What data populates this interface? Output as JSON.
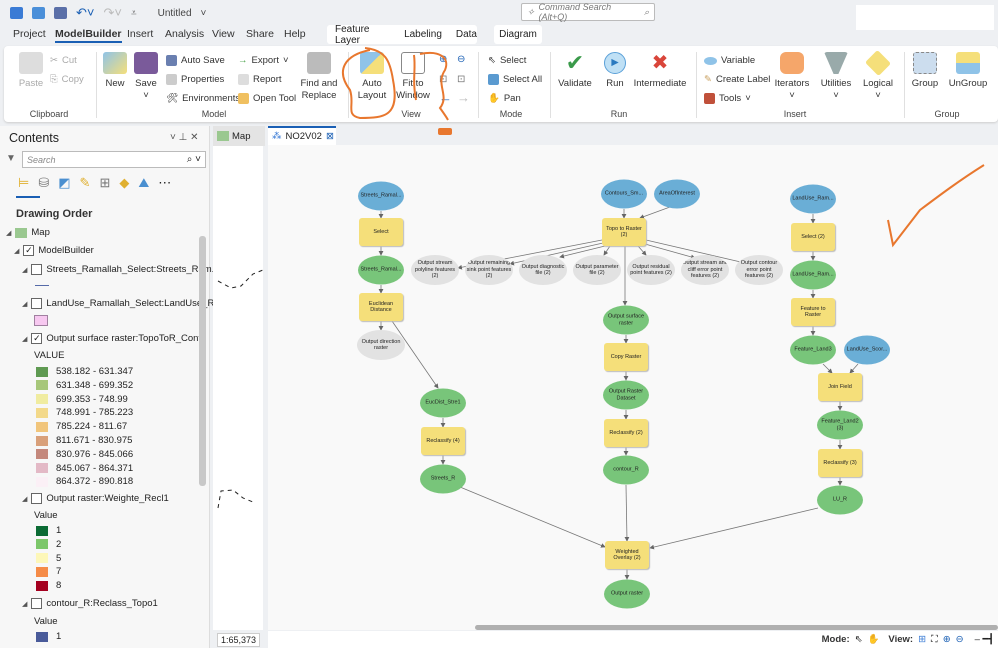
{
  "title": "Untitled",
  "search": {
    "placeholder": "Command Search (Alt+Q)"
  },
  "tabs": [
    "Project",
    "ModelBuilder",
    "Insert",
    "Analysis",
    "View",
    "Share",
    "Help"
  ],
  "context_tabs": [
    "Feature Layer",
    "Labeling",
    "Data"
  ],
  "diagram_tab": "Diagram",
  "ribbon": {
    "clipboard": {
      "label": "Clipboard",
      "paste": "Paste",
      "cut": "Cut",
      "copy": "Copy"
    },
    "model": {
      "label": "Model",
      "new": "New",
      "save": "Save",
      "auto_save": "Auto Save",
      "properties": "Properties",
      "environments": "Environments",
      "export": "Export",
      "report": "Report",
      "open_tool": "Open Tool",
      "find_replace": "Find and Replace"
    },
    "view": {
      "label": "View",
      "auto_layout": "Auto Layout",
      "fit": "Fit to Window"
    },
    "mode": {
      "label": "Mode",
      "select": "Select",
      "select_all": "Select All",
      "pan": "Pan"
    },
    "run": {
      "label": "Run",
      "validate": "Validate",
      "run": "Run",
      "intermediate": "Intermediate"
    },
    "insert": {
      "label": "Insert",
      "variable": "Variable",
      "create_label": "Create Label",
      "tools": "Tools",
      "iterators": "Iterators",
      "utilities": "Utilities",
      "logical": "Logical"
    },
    "group": {
      "label": "Group",
      "group": "Group",
      "ungroup": "UnGroup"
    }
  },
  "contents": {
    "title": "Contents",
    "search_placeholder": "Search",
    "drawing_order": "Drawing Order",
    "map": "Map",
    "modelbuilder": "ModelBuilder",
    "layers": [
      "Streets_Ramallah_Select:Streets_Ram...",
      "LandUse_Ramallah_Select:LandUse_R...",
      "Output surface raster:TopoToR_Cont1",
      "Output raster:Weighte_Recl1",
      "contour_R:Reclass_Topo1"
    ],
    "value_upper": "VALUE",
    "value": "Value",
    "surface_classes": [
      {
        "label": "538.182 - 631.347",
        "color": "#5f9a52"
      },
      {
        "label": "631.348 - 699.352",
        "color": "#a7c77a"
      },
      {
        "label": "699.353 - 748.99",
        "color": "#f0eca0"
      },
      {
        "label": "748.991 - 785.223",
        "color": "#f3d98a"
      },
      {
        "label": "785.224 - 811.67",
        "color": "#f1c57b"
      },
      {
        "label": "811.671 - 830.975",
        "color": "#d9a07a"
      },
      {
        "label": "830.976 - 845.066",
        "color": "#c4887c"
      },
      {
        "label": "845.067 - 864.371",
        "color": "#e3b9c6"
      },
      {
        "label": "864.372 - 890.818",
        "color": "#fbf0f6"
      }
    ],
    "weighted_classes": [
      {
        "label": "1",
        "color": "#0b6b34"
      },
      {
        "label": "2",
        "color": "#7cc76a"
      },
      {
        "label": "5",
        "color": "#fdf7b8"
      },
      {
        "label": "7",
        "color": "#f58b47"
      },
      {
        "label": "8",
        "color": "#a4001f"
      }
    ],
    "contour_classes": [
      {
        "label": "1",
        "color": "#4a5b9a"
      }
    ]
  },
  "map_tab": "Map",
  "model_tab": "NO2V02",
  "scale": "1:65,373",
  "status": {
    "mode": "Mode:",
    "view": "View:"
  },
  "nodes": {
    "streets_in": "Streets_Ramal...",
    "select": "Select",
    "streets_sel": "Streets_Ramal...",
    "euclid": "Euclidean Distance",
    "out_dir": "Output direction raster",
    "eucdist": "EucDist_Stre1",
    "reclass4": "Reclassify (4)",
    "streets_r": "Streets_R",
    "contours": "Contours_Sm...",
    "aoi": "AreaOfInterest",
    "topo": "Topo to Raster (2)",
    "o1": "Output stream polyline features (2)",
    "o2": "Output remaining sink point features (2)",
    "o3": "Output diagnostic file (2)",
    "o4": "Output parameter file (2)",
    "o5": "Output residual point features (2)",
    "o6": "Output stream and cliff error point features (2)",
    "o7": "Output contour error point features (2)",
    "surface": "Output surface raster",
    "copy": "Copy Raster",
    "rasterds": "Output Raster Dataset",
    "reclass2": "Reclassify (2)",
    "contour_r": "contour_R",
    "wo": "Weighted Overlay (2)",
    "out_raster": "Output raster",
    "landuse_in": "LandUse_Ram...",
    "select2": "Select (2)",
    "landuse_sel": "LandUse_Ram...",
    "f2r": "Feature to Raster",
    "fl3": "Feature_Land3",
    "lu_score": "LandUse_Scor...",
    "join": "Join Field",
    "fl2": "Feature_Land2 (3)",
    "reclass3": "Reclassify (3)",
    "lu_r": "LU_R"
  },
  "colors": {
    "accent": "#1a5fb4",
    "annotation": "#e8772e",
    "process": "#f5df7a",
    "input": "#6aaed6",
    "derived": "#78c57a"
  }
}
